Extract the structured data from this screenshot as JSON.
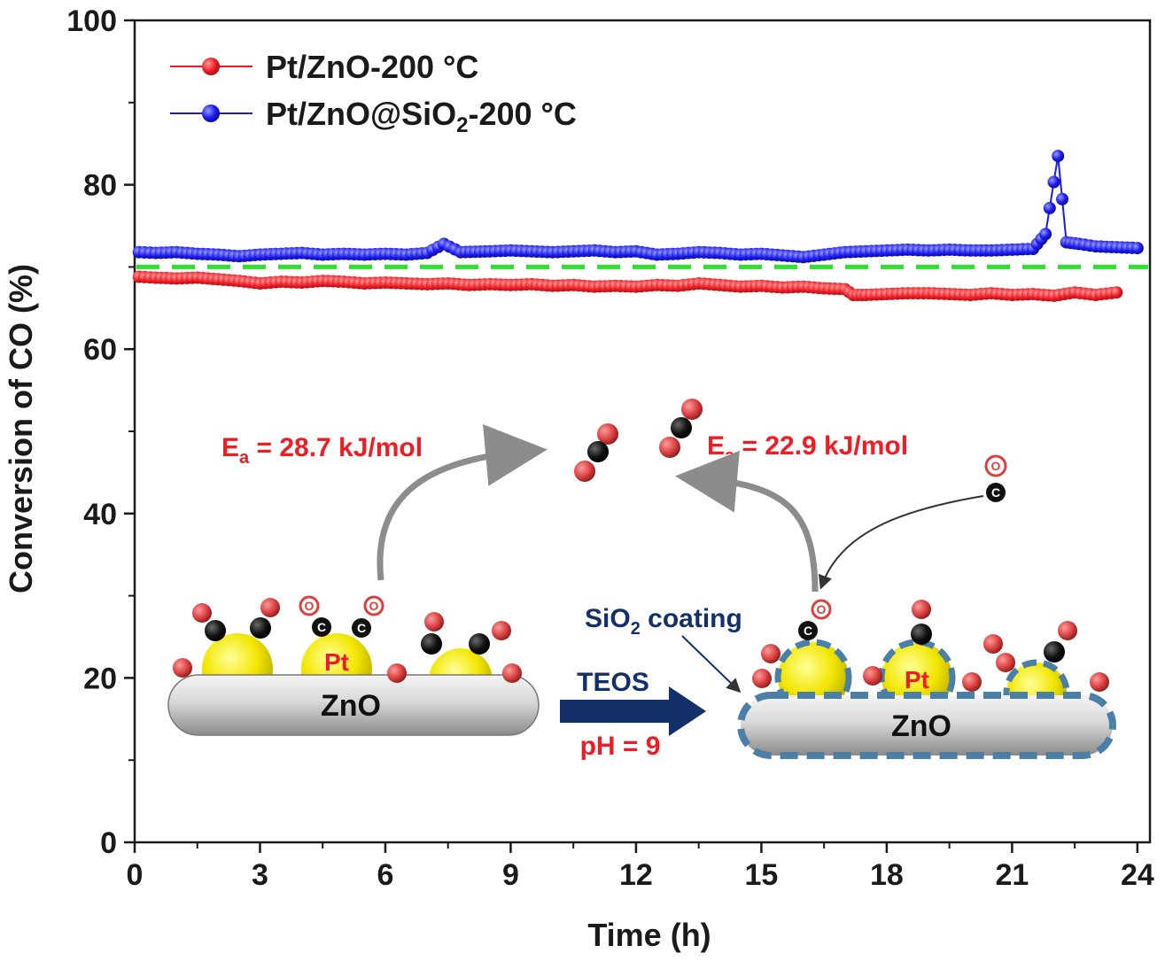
{
  "chart_data": {
    "type": "line",
    "title": "",
    "xlabel": "Time (h)",
    "ylabel": "Conversion of CO (%)",
    "xlim": [
      0,
      24.3
    ],
    "ylim": [
      0,
      100
    ],
    "x_ticks": [
      0,
      3,
      6,
      9,
      12,
      15,
      18,
      21,
      24
    ],
    "y_ticks": [
      0,
      20,
      40,
      60,
      80,
      100
    ],
    "legend_position": "top-left",
    "grid": false,
    "reference_line": {
      "y": 70,
      "color": "#33dd33",
      "style": "dashed"
    },
    "series": [
      {
        "name": "Pt/ZnO-200 °C",
        "color": "#ee1c25",
        "x": [
          0.1,
          0.5,
          1,
          1.5,
          2,
          2.5,
          3,
          3.5,
          4,
          4.5,
          5,
          5.5,
          6,
          6.5,
          7,
          7.5,
          8,
          8.5,
          9,
          9.5,
          10,
          10.5,
          11,
          11.5,
          12,
          12.5,
          13,
          13.5,
          14,
          14.5,
          15,
          15.5,
          16,
          16.5,
          17,
          17.2,
          17.5,
          18,
          18.5,
          19,
          19.5,
          20,
          20.5,
          21,
          21.5,
          22,
          22.5,
          23,
          23.5
        ],
        "y": [
          68.8,
          68.7,
          68.6,
          68.7,
          68.5,
          68.3,
          68.0,
          68.2,
          68.1,
          68.3,
          68.2,
          68.0,
          68.1,
          68.0,
          67.9,
          68.0,
          67.8,
          67.9,
          67.8,
          67.9,
          67.7,
          67.8,
          67.6,
          67.7,
          67.6,
          67.8,
          67.7,
          68.0,
          67.8,
          67.6,
          67.7,
          67.5,
          67.6,
          67.4,
          67.3,
          66.6,
          66.6,
          66.7,
          66.8,
          66.8,
          66.7,
          66.6,
          66.8,
          66.6,
          66.7,
          66.5,
          66.9,
          66.6,
          66.9
        ]
      },
      {
        "name": "Pt/ZnO@SiO2-200 °C",
        "color": "#1a1aee",
        "x": [
          0.1,
          0.5,
          1,
          1.5,
          2,
          2.5,
          3,
          3.5,
          4,
          4.5,
          5,
          5.5,
          6,
          6.5,
          7,
          7.4,
          7.8,
          8.5,
          9,
          9.5,
          10,
          10.5,
          11,
          11.5,
          12,
          12.5,
          13,
          13.5,
          14,
          14.5,
          15,
          15.5,
          16,
          16.5,
          17,
          17.5,
          18,
          18.5,
          19,
          19.5,
          20,
          20.5,
          21,
          21.5,
          21.8,
          22.1,
          22.3,
          22.6,
          23,
          23.5,
          24
        ],
        "y": [
          71.8,
          71.7,
          71.8,
          71.6,
          71.5,
          71.3,
          71.5,
          71.6,
          71.7,
          71.5,
          71.6,
          71.5,
          71.6,
          71.5,
          71.7,
          72.8,
          71.8,
          71.9,
          72.0,
          71.9,
          71.8,
          71.9,
          72.0,
          71.8,
          71.9,
          71.5,
          71.6,
          71.8,
          71.7,
          71.5,
          71.6,
          71.4,
          71.2,
          71.5,
          71.8,
          71.9,
          72.0,
          72.1,
          72.0,
          72.1,
          72.0,
          72.0,
          72.1,
          72.2,
          74.0,
          83.5,
          73.0,
          72.8,
          72.5,
          72.4,
          72.3
        ]
      }
    ],
    "annotations": {
      "ea_left": "E",
      "ea_left_sub": "a",
      "ea_left_val": " = 28.7 kJ/mol",
      "ea_right": "E",
      "ea_right_sub": "a",
      "ea_right_val": " = 22.9 kJ/mol",
      "pt_label": "Pt",
      "zno_label": "ZnO",
      "teos_label": "TEOS",
      "ph_label": "pH = 9",
      "sio2_coating_pre": "SiO",
      "sio2_coating_sub": "2",
      "sio2_coating_post": " coating",
      "atom_o": "O",
      "atom_c": "C"
    },
    "legend_labels": {
      "s1": "Pt/ZnO-200 °C",
      "s2_pre": "Pt/ZnO@SiO",
      "s2_sub": "2",
      "s2_post": "-200 °C"
    }
  },
  "colors": {
    "axis": "#1a1a1a",
    "oxygen": "#d94040",
    "carbon": "#111111",
    "pt_yellow": "#f2e600",
    "zno_gray": "#cfcfcf",
    "arrow_navy": "#13306b",
    "sio2_dash": "#4a7fa8",
    "gray_arrow": "#8c8c8c"
  }
}
